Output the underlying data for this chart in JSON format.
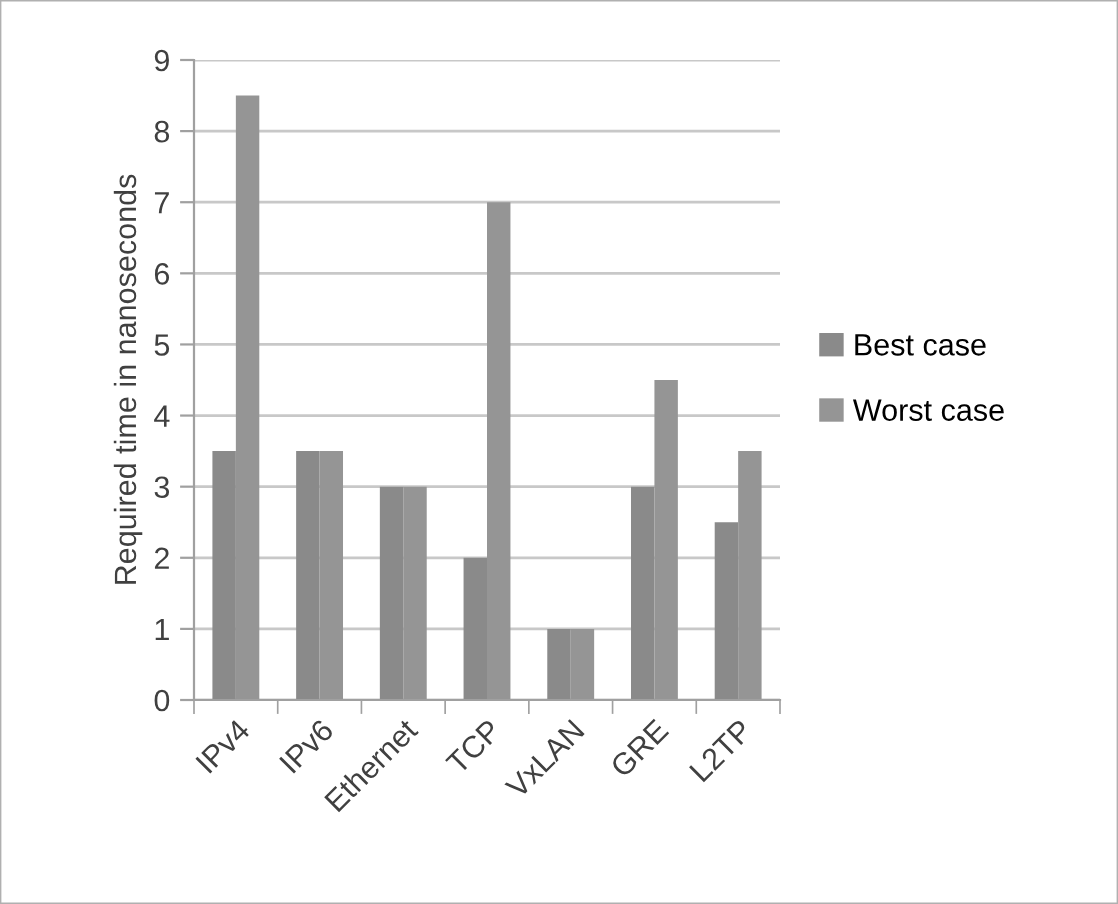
{
  "chart_data": {
    "type": "bar",
    "ylabel": "Required time in nanoseconds",
    "categories": [
      "IPv4",
      "IPv6",
      "Ethernet",
      "TCP",
      "VxLAN",
      "GRE",
      "L2TP"
    ],
    "series": [
      {
        "name": "Best case",
        "color": "#8a8a8a",
        "values": [
          3.5,
          3.5,
          3,
          2,
          1,
          3,
          2.5
        ]
      },
      {
        "name": "Worst case",
        "color": "#959595",
        "values": [
          8.5,
          3.5,
          3,
          7,
          1,
          4.5,
          3.5
        ]
      }
    ],
    "ylim": [
      0,
      9
    ],
    "yticks": [
      0,
      1,
      2,
      3,
      4,
      5,
      6,
      7,
      8,
      9
    ],
    "grid": "y",
    "legend": "right"
  }
}
